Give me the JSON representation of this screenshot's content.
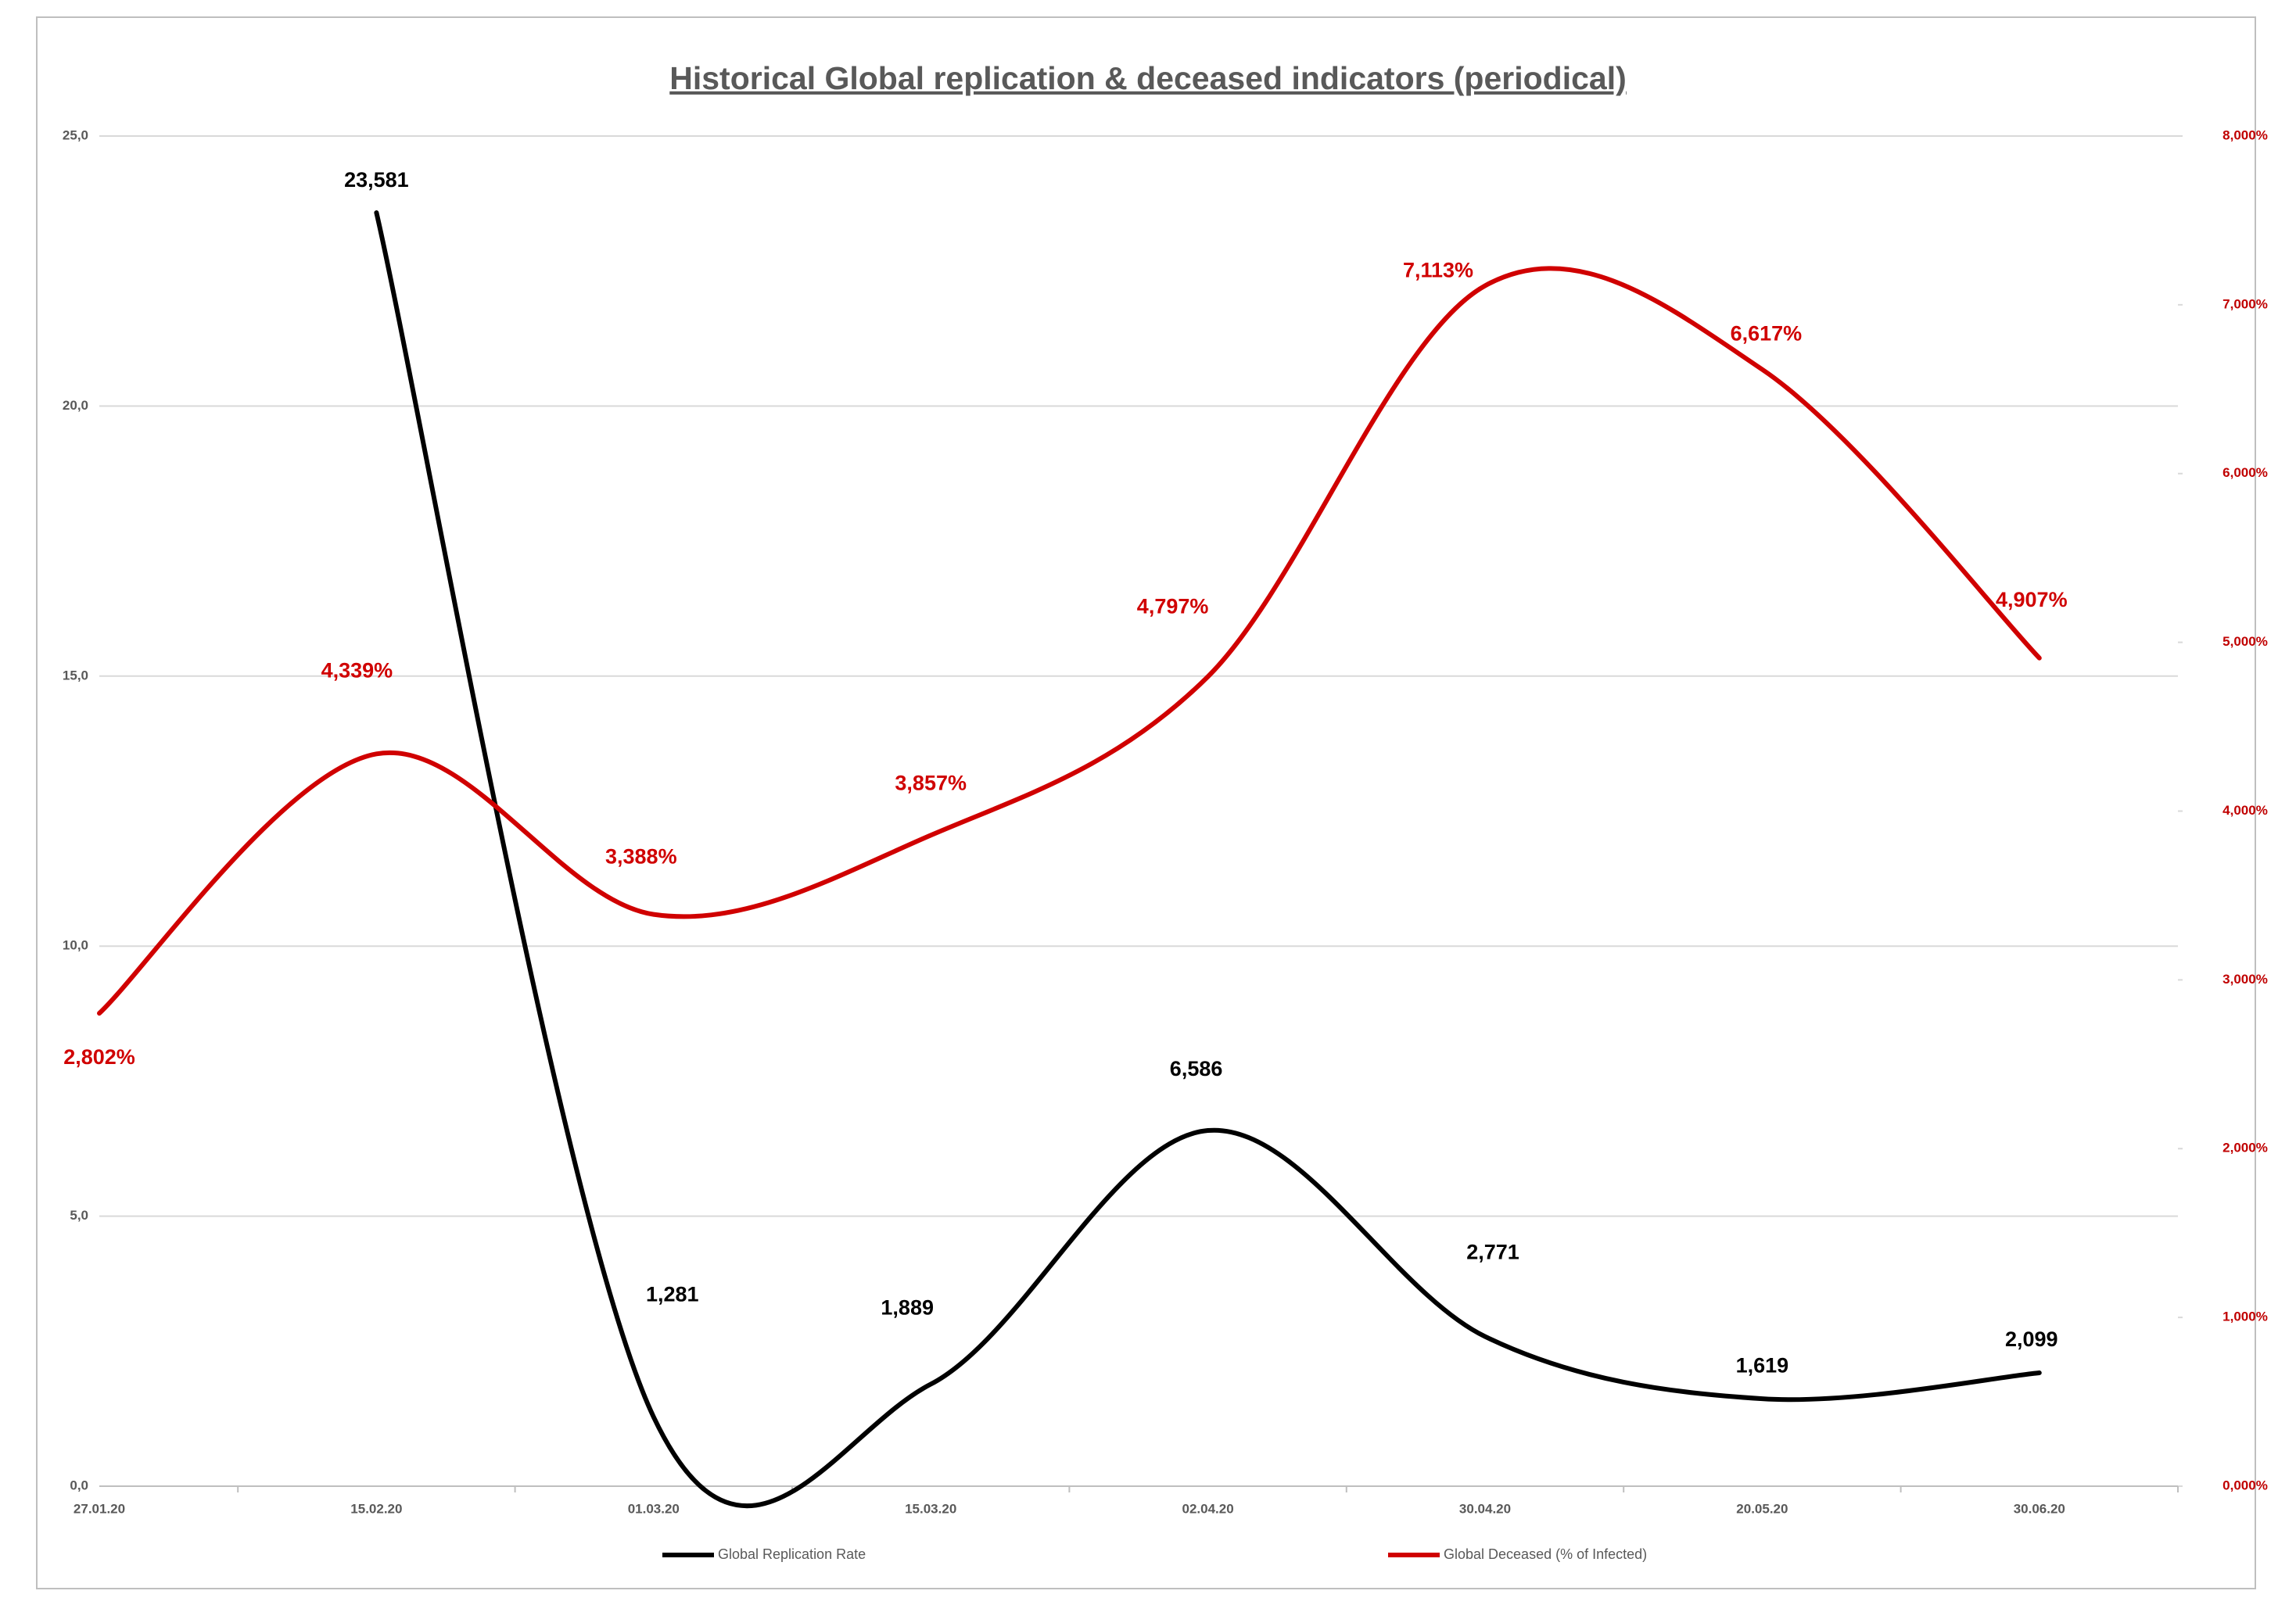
{
  "chart_data": {
    "type": "line",
    "title": "Historical Global replication  & deceased indicators (periodical)",
    "categories": [
      "27.01.20",
      "15.02.20",
      "01.03.20",
      "15.03.20",
      "02.04.20",
      "30.04.20",
      "20.05.20",
      "30.06.20"
    ],
    "series": [
      {
        "name": "Global Replication Rate",
        "color": "#000000",
        "axis": "y",
        "values": [
          null,
          23.581,
          1.281,
          1.889,
          6.586,
          2.771,
          1.619,
          2.099
        ],
        "value_labels": [
          null,
          "23,581",
          "1,281",
          "1,889",
          "6,586",
          "2,771",
          "1,619",
          "2,099"
        ]
      },
      {
        "name": "Global Deceased  (% of Infected)",
        "color": "#d00000",
        "axis": "y2",
        "values": [
          2.802,
          4.339,
          3.388,
          3.857,
          4.797,
          7.113,
          6.617,
          4.907
        ],
        "value_labels": [
          "2,802%",
          "4,339%",
          "3,388%",
          "3,857%",
          "4,797%",
          "7,113%",
          "6,617%",
          "4,907%"
        ]
      }
    ],
    "ylim": [
      0,
      25
    ],
    "yticks": [
      {
        "value": 0,
        "label": "0,0"
      },
      {
        "value": 5,
        "label": "5,0"
      },
      {
        "value": 10,
        "label": "10,0"
      },
      {
        "value": 15,
        "label": "15,0"
      },
      {
        "value": 20,
        "label": "20,0"
      },
      {
        "value": 25,
        "label": "25,0"
      }
    ],
    "y2lim": [
      0,
      8
    ],
    "y2ticks": [
      {
        "value": 0,
        "label": "0,000%"
      },
      {
        "value": 1,
        "label": "1,000%"
      },
      {
        "value": 2,
        "label": "2,000%"
      },
      {
        "value": 3,
        "label": "3,000%"
      },
      {
        "value": 4,
        "label": "4,000%"
      },
      {
        "value": 5,
        "label": "5,000%"
      },
      {
        "value": 6,
        "label": "6,000%"
      },
      {
        "value": 7,
        "label": "7,000%"
      },
      {
        "value": 8,
        "label": "8,000%"
      }
    ],
    "grid": true,
    "legend": "bottom"
  }
}
